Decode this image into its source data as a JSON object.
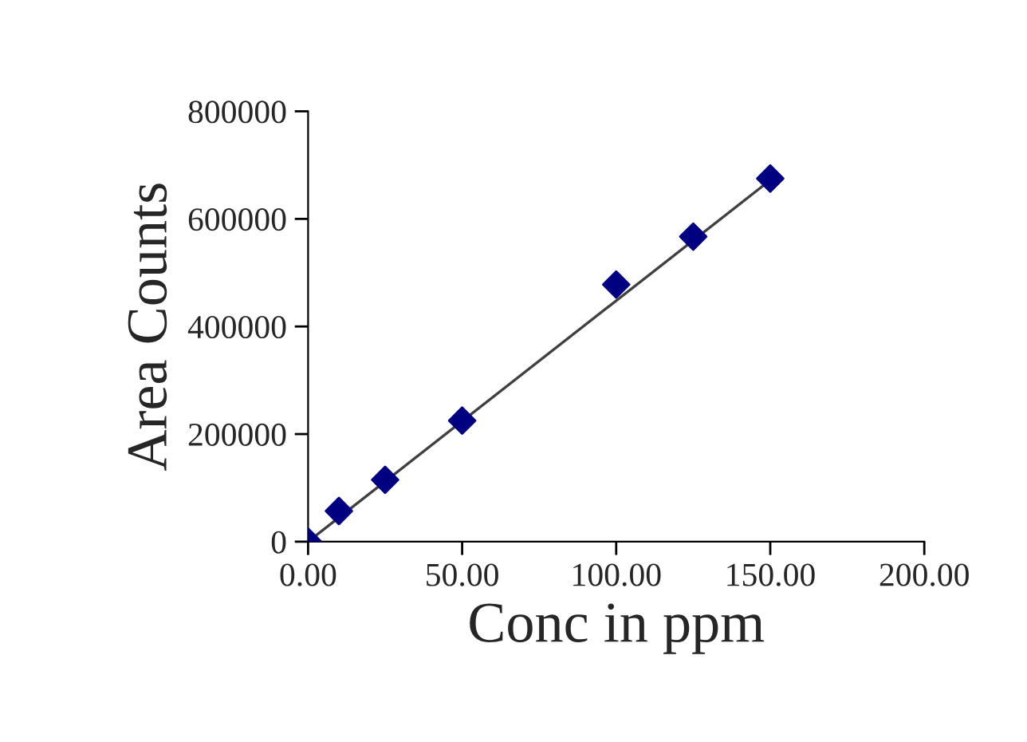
{
  "chart_data": {
    "type": "scatter",
    "xlabel": "Conc in ppm",
    "ylabel": "Area Counts",
    "grid": false,
    "legend": false,
    "series": [
      {
        "color": "#000080",
        "marker": "diamond",
        "x": [
          0,
          10,
          25,
          50,
          100,
          125,
          150
        ],
        "values": [
          0,
          57000,
          115000,
          225000,
          478000,
          567000,
          675000
        ]
      },
      {
        "type": "line",
        "marker": "none",
        "color": "#404040",
        "x": [
          0,
          150
        ],
        "values": [
          0,
          672000
        ]
      }
    ],
    "xlim": [
      0,
      200
    ],
    "xticks": [
      {
        "value": 0,
        "label": "0.00"
      },
      {
        "value": 50,
        "label": "50.00"
      },
      {
        "value": 100,
        "label": "100.00"
      },
      {
        "value": 150,
        "label": "150.00"
      },
      {
        "value": 200,
        "label": "200.00"
      }
    ],
    "ylim": [
      0,
      800000
    ],
    "yticks": [
      0,
      200000,
      400000,
      600000,
      800000
    ]
  }
}
